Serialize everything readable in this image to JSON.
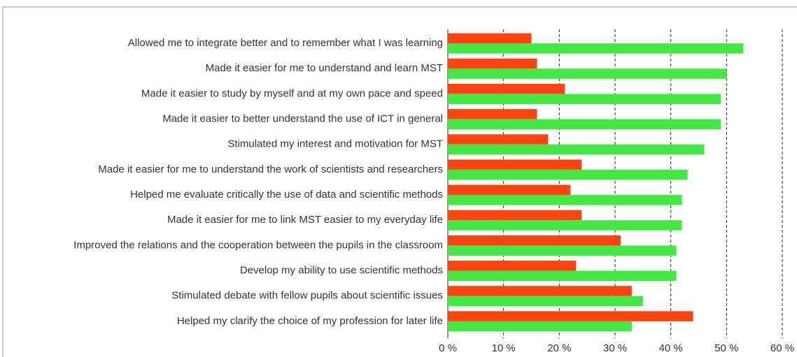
{
  "chart_data": {
    "type": "bar",
    "orientation": "horizontal",
    "categories": [
      "Allowed me to integrate better and to remember what I was learning",
      "Made it easier for me to understand and learn MST",
      "Made it easier to study by myself and at my own pace and speed",
      "Made it easier to better understand  the use of ICT in general",
      "Stimulated my interest and motivation for MST",
      "Made it easier for me to understand the work of scientists and researchers",
      "Helped me evaluate critically the use of data and scientific methods",
      "Made it easier for me  to link MST easier to my everyday life",
      "Improved the relations and the cooperation between the pupils in the classroom",
      "Develop my ability to use scientific methods",
      "Stimulated debate with fellow pupils about scientific issues",
      "Helped my clarify the choice of my profession for later life"
    ],
    "series": [
      {
        "color": "#ff4412",
        "values": [
          15,
          16,
          21,
          16,
          18,
          24,
          22,
          24,
          31,
          23,
          33,
          44
        ]
      },
      {
        "color": "#44e844",
        "values": [
          53,
          50,
          49,
          49,
          46,
          43,
          42,
          42,
          41,
          41,
          35,
          33
        ]
      }
    ],
    "xlim": [
      0,
      60
    ],
    "xticks": [
      {
        "value": 0,
        "label": "0 %"
      },
      {
        "value": 10,
        "label": "10 %"
      },
      {
        "value": 20,
        "label": "20 %"
      },
      {
        "value": 30,
        "label": "30 %"
      },
      {
        "value": 40,
        "label": "40 %"
      },
      {
        "value": 50,
        "label": "50 %"
      },
      {
        "value": 60,
        "label": "60 %"
      }
    ],
    "grid": true
  }
}
